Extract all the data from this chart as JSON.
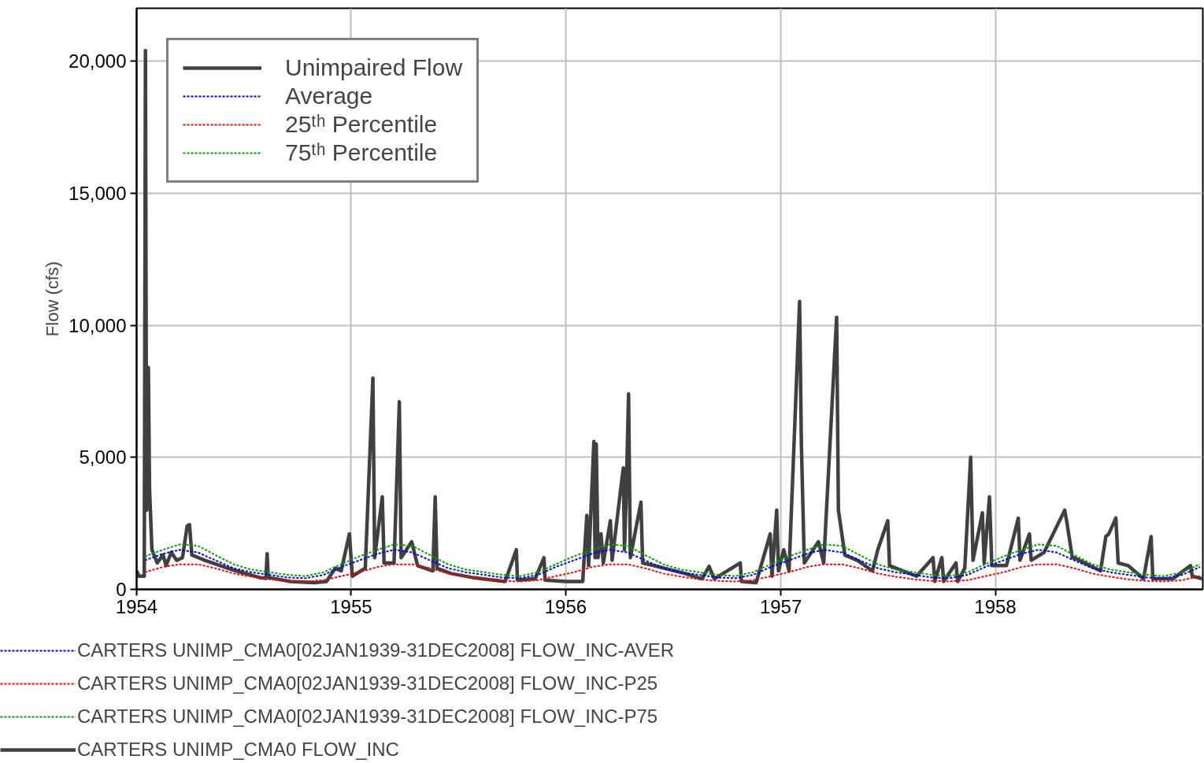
{
  "chart_data": {
    "type": "line",
    "ylabel": "Flow (cfs)",
    "xlim": [
      "1954-01-01",
      "1958-12-20"
    ],
    "xticks": [
      "1954",
      "1955",
      "1956",
      "1957",
      "1958"
    ],
    "ylim": [
      0,
      22000
    ],
    "yticks": [
      0,
      {
        "value": 5000,
        "label": "5,000"
      },
      {
        "value": 10000,
        "label": "10,000"
      },
      {
        "value": 15000,
        "label": "15,000"
      },
      {
        "value": 20000,
        "label": "20,000"
      }
    ],
    "grid": true,
    "legend": "top left",
    "annotations": [
      "CARTERS UNIMP_CMA0[02JAN1939-31DEC2008] FLOW_INC-AVER",
      "CARTERS UNIMP_CMA0[02JAN1939-31DEC2008] FLOW_INC-P25",
      "CARTERS UNIMP_CMA0[02JAN1939-31DEC2008] FLOW_INC-P75",
      "CARTERS UNIMP_CMA0 FLOW_INC"
    ],
    "series": [
      {
        "name": "Unimpaired Flow",
        "color": "#404040",
        "line_style": "solid",
        "x": [
          "1954-01-01",
          "1954-01-05",
          "1954-01-14",
          "1954-01-16",
          "1954-01-18",
          "1954-01-21",
          "1954-01-23",
          "1954-01-27",
          "1954-02-05",
          "1954-02-15",
          "1954-02-20",
          "1954-03-01",
          "1954-03-10",
          "1954-03-20",
          "1954-03-28",
          "1954-04-01",
          "1954-04-05",
          "1954-04-27",
          "1954-06-19",
          "1954-07-29",
          "1954-08-09",
          "1954-08-11",
          "1954-08-13",
          "1954-09-20",
          "1954-10-31",
          "1954-11-20",
          "1954-12-05",
          "1954-12-15",
          "1954-12-29",
          "1955-01-03",
          "1955-01-25",
          "1955-02-07",
          "1955-02-10",
          "1955-02-23",
          "1955-02-26",
          "1955-03-15",
          "1955-03-24",
          "1955-03-27",
          "1955-04-14",
          "1955-04-24",
          "1955-05-20",
          "1955-05-24",
          "1955-05-27",
          "1955-06-20",
          "1955-07-26",
          "1955-09-20",
          "1955-10-09",
          "1955-10-11",
          "1955-11-10",
          "1955-11-25",
          "1955-11-27",
          "1956-01-01",
          "1956-01-30",
          "1956-02-06",
          "1956-02-09",
          "1956-02-18",
          "1956-02-20",
          "1956-02-22",
          "1956-02-25",
          "1956-03-01",
          "1956-03-05",
          "1956-03-17",
          "1956-03-20",
          "1956-04-08",
          "1956-04-10",
          "1956-04-13",
          "1956-04-17",
          "1956-04-20",
          "1956-05-08",
          "1956-05-11",
          "1956-05-30",
          "1956-07-22",
          "1956-08-20",
          "1956-09-01",
          "1956-09-10",
          "1956-10-24",
          "1956-10-26",
          "1956-11-20",
          "1956-12-14",
          "1956-12-17",
          "1956-12-25",
          "1956-12-28",
          "1957-01-06",
          "1957-01-15",
          "1957-02-02",
          "1957-02-05",
          "1957-02-10",
          "1957-03-06",
          "1957-03-15",
          "1957-04-06",
          "1957-04-09",
          "1957-04-20",
          "1957-05-11",
          "1957-06-06",
          "1957-06-15",
          "1957-07-02",
          "1957-07-05",
          "1957-08-20",
          "1957-09-17",
          "1957-09-20",
          "1957-10-02",
          "1957-10-05",
          "1957-10-26",
          "1957-10-29",
          "1957-11-10",
          "1957-11-20",
          "1957-11-24",
          "1957-12-10",
          "1957-12-13",
          "1957-12-22",
          "1957-12-26",
          "1958-01-20",
          "1958-02-09",
          "1958-02-12",
          "1958-02-28",
          "1958-03-03",
          "1958-03-25",
          "1958-04-29",
          "1958-05-03",
          "1958-05-12",
          "1958-05-15",
          "1958-06-29",
          "1958-07-08",
          "1958-07-13",
          "1958-07-25",
          "1958-07-29",
          "1958-08-15",
          "1958-09-10",
          "1958-09-23",
          "1958-09-26",
          "1958-10-30",
          "1958-11-29",
          "1958-12-02",
          "1958-12-20"
        ],
        "values": [
          700,
          500,
          500,
          20400,
          3000,
          8400,
          3800,
          1500,
          1000,
          1300,
          900,
          1400,
          1100,
          1200,
          2400,
          2450,
          1300,
          1100,
          700,
          450,
          420,
          1350,
          450,
          300,
          250,
          300,
          800,
          700,
          2100,
          500,
          800,
          8000,
          1200,
          3500,
          1000,
          1000,
          7100,
          1200,
          1800,
          900,
          700,
          3500,
          800,
          600,
          450,
          300,
          1500,
          350,
          400,
          1200,
          350,
          300,
          300,
          2800,
          900,
          5600,
          1200,
          5500,
          1200,
          2100,
          1000,
          2600,
          1100,
          4600,
          1500,
          3600,
          7400,
          1200,
          3300,
          1000,
          900,
          600,
          400,
          870,
          400,
          1000,
          300,
          250,
          2100,
          500,
          3000,
          700,
          1500,
          700,
          10900,
          5500,
          1000,
          1800,
          1000,
          10300,
          3000,
          1300,
          1100,
          700,
          1500,
          2600,
          900,
          500,
          1200,
          300,
          1200,
          300,
          1000,
          300,
          800,
          5000,
          1100,
          2900,
          1000,
          3500,
          900,
          900,
          2700,
          1100,
          2100,
          1100,
          1400,
          3000,
          2500,
          1200,
          1200,
          700,
          2000,
          2100,
          2700,
          1000,
          900,
          400,
          2000,
          400,
          400,
          900,
          500,
          400
        ]
      },
      {
        "name": "Average",
        "color": "#0000ff",
        "line_style": "dashed",
        "x": [
          "1954-01-15",
          "1954-02-15",
          "1954-03-15",
          "1954-04-15",
          "1954-05-15",
          "1954-06-15",
          "1954-07-15",
          "1954-08-15",
          "1954-09-15",
          "1954-10-15",
          "1954-11-15",
          "1954-12-15",
          "1955-01-15",
          "1955-02-15",
          "1955-03-15",
          "1955-04-15",
          "1955-05-15",
          "1955-06-15",
          "1955-07-15",
          "1955-08-15",
          "1955-09-15",
          "1955-10-15",
          "1955-11-15",
          "1955-12-15",
          "1956-01-15",
          "1956-02-15",
          "1956-03-15",
          "1956-04-15",
          "1956-05-15",
          "1956-06-15",
          "1956-07-15",
          "1956-08-15",
          "1956-09-15",
          "1956-10-15",
          "1956-11-15",
          "1956-12-15",
          "1957-01-15",
          "1957-02-15",
          "1957-03-15",
          "1957-04-15",
          "1957-05-15",
          "1957-06-15",
          "1957-07-15",
          "1957-08-15",
          "1957-09-15",
          "1957-10-15",
          "1957-11-15",
          "1957-12-15",
          "1958-01-15",
          "1958-02-15",
          "1958-03-15",
          "1958-04-15",
          "1958-05-15",
          "1958-06-15",
          "1958-07-15",
          "1958-08-15",
          "1958-09-15",
          "1958-10-15",
          "1958-11-15",
          "1958-12-15"
        ],
        "values": [
          1100,
          1350,
          1500,
          1400,
          1100,
          800,
          650,
          550,
          450,
          420,
          550,
          850,
          1100,
          1350,
          1500,
          1400,
          1100,
          800,
          650,
          550,
          450,
          420,
          550,
          850,
          1100,
          1350,
          1500,
          1400,
          1100,
          800,
          650,
          550,
          450,
          420,
          550,
          850,
          1100,
          1350,
          1500,
          1400,
          1100,
          800,
          650,
          550,
          450,
          420,
          550,
          850,
          1100,
          1350,
          1500,
          1400,
          1100,
          800,
          650,
          550,
          450,
          420,
          550,
          850
        ]
      },
      {
        "name": "25ᵗʰ Percentile",
        "color": "#ff0000",
        "line_style": "dashed",
        "x": [
          "1954-01-15",
          "1954-02-15",
          "1954-03-15",
          "1954-04-15",
          "1954-05-15",
          "1954-06-15",
          "1954-07-15",
          "1954-08-15",
          "1954-09-15",
          "1954-10-15",
          "1954-11-15",
          "1954-12-15",
          "1955-01-15",
          "1955-02-15",
          "1955-03-15",
          "1955-04-15",
          "1955-05-15",
          "1955-06-15",
          "1955-07-15",
          "1955-08-15",
          "1955-09-15",
          "1955-10-15",
          "1955-11-15",
          "1955-12-15",
          "1956-01-15",
          "1956-02-15",
          "1956-03-15",
          "1956-04-15",
          "1956-05-15",
          "1956-06-15",
          "1956-07-15",
          "1956-08-15",
          "1956-09-15",
          "1956-10-15",
          "1956-11-15",
          "1956-12-15",
          "1957-01-15",
          "1957-02-15",
          "1957-03-15",
          "1957-04-15",
          "1957-05-15",
          "1957-06-15",
          "1957-07-15",
          "1957-08-15",
          "1957-09-15",
          "1957-10-15",
          "1957-11-15",
          "1957-12-15",
          "1958-01-15",
          "1958-02-15",
          "1958-03-15",
          "1958-04-15",
          "1958-05-15",
          "1958-06-15",
          "1958-07-15",
          "1958-08-15",
          "1958-09-15",
          "1958-10-15",
          "1958-11-15",
          "1958-12-15"
        ],
        "values": [
          650,
          850,
          950,
          950,
          800,
          600,
          480,
          380,
          320,
          300,
          350,
          500,
          650,
          850,
          950,
          950,
          800,
          600,
          480,
          380,
          320,
          300,
          350,
          500,
          650,
          850,
          950,
          950,
          800,
          600,
          480,
          380,
          320,
          300,
          350,
          500,
          650,
          850,
          950,
          950,
          800,
          600,
          480,
          380,
          320,
          300,
          350,
          500,
          650,
          850,
          950,
          950,
          800,
          600,
          480,
          380,
          320,
          300,
          350,
          500
        ]
      },
      {
        "name": "75ᵗʰ Percentile",
        "color": "#00a000",
        "line_style": "dashed",
        "x": [
          "1954-01-15",
          "1954-02-15",
          "1954-03-15",
          "1954-04-15",
          "1954-05-15",
          "1954-06-15",
          "1954-07-15",
          "1954-08-15",
          "1954-09-15",
          "1954-10-15",
          "1954-11-15",
          "1954-12-15",
          "1955-01-15",
          "1955-02-15",
          "1955-03-15",
          "1955-04-15",
          "1955-05-15",
          "1955-06-15",
          "1955-07-15",
          "1955-08-15",
          "1955-09-15",
          "1955-10-15",
          "1955-11-15",
          "1955-12-15",
          "1956-01-15",
          "1956-02-15",
          "1956-03-15",
          "1956-04-15",
          "1956-05-15",
          "1956-06-15",
          "1956-07-15",
          "1956-08-15",
          "1956-09-15",
          "1956-10-15",
          "1956-11-15",
          "1956-12-15",
          "1957-01-15",
          "1957-02-15",
          "1957-03-15",
          "1957-04-15",
          "1957-05-15",
          "1957-06-15",
          "1957-07-15",
          "1957-08-15",
          "1957-09-15",
          "1957-10-15",
          "1957-11-15",
          "1957-12-15",
          "1958-01-15",
          "1958-02-15",
          "1958-03-15",
          "1958-04-15",
          "1958-05-15",
          "1958-06-15",
          "1958-07-15",
          "1958-08-15",
          "1958-09-15",
          "1958-10-15",
          "1958-11-15",
          "1958-12-15"
        ],
        "values": [
          1250,
          1500,
          1700,
          1650,
          1300,
          950,
          750,
          650,
          550,
          500,
          650,
          950,
          1250,
          1500,
          1700,
          1650,
          1300,
          950,
          750,
          650,
          550,
          500,
          650,
          950,
          1250,
          1500,
          1700,
          1650,
          1300,
          950,
          750,
          650,
          550,
          500,
          650,
          950,
          1250,
          1500,
          1700,
          1650,
          1300,
          950,
          750,
          650,
          550,
          500,
          650,
          950,
          1250,
          1500,
          1700,
          1650,
          1300,
          950,
          750,
          650,
          550,
          500,
          650,
          950
        ]
      }
    ]
  }
}
